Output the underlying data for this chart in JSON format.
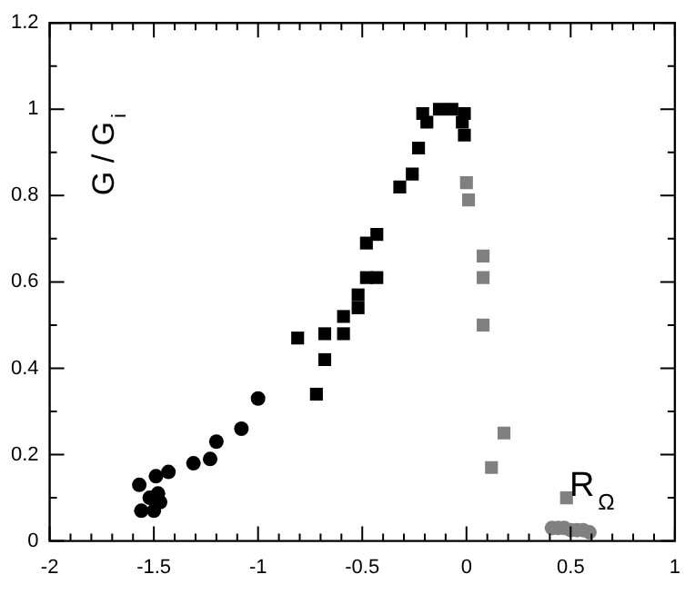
{
  "chart_data": {
    "type": "scatter",
    "xlabel": "R$_{Ω}$",
    "ylabel": "G / G$_{i}$",
    "xlim": [
      -2,
      1
    ],
    "ylim": [
      0,
      1.2
    ],
    "xticks": [
      -2,
      {
        "value": -1.9,
        "label": null
      },
      {
        "value": -1.8,
        "label": null
      },
      {
        "value": -1.7,
        "label": null
      },
      {
        "value": -1.6,
        "label": null
      },
      -1.5,
      {
        "value": -1.4,
        "label": null
      },
      {
        "value": -1.3,
        "label": null
      },
      {
        "value": -1.2,
        "label": null
      },
      {
        "value": -1.1,
        "label": null
      },
      -1,
      {
        "value": -0.9,
        "label": null
      },
      {
        "value": -0.8,
        "label": null
      },
      {
        "value": -0.7,
        "label": null
      },
      {
        "value": -0.6,
        "label": null
      },
      -0.5,
      {
        "value": -0.4,
        "label": null
      },
      {
        "value": -0.3,
        "label": null
      },
      {
        "value": -0.2,
        "label": null
      },
      {
        "value": -0.1,
        "label": null
      },
      0,
      {
        "value": 0.1,
        "label": null
      },
      {
        "value": 0.2,
        "label": null
      },
      {
        "value": 0.3,
        "label": null
      },
      {
        "value": 0.4,
        "label": null
      },
      0.5,
      {
        "value": 0.6,
        "label": null
      },
      {
        "value": 0.7,
        "label": null
      },
      {
        "value": 0.8,
        "label": null
      },
      {
        "value": 0.9,
        "label": null
      },
      1
    ],
    "yticks": [
      0,
      {
        "value": 0.1,
        "label": null
      },
      0.2,
      {
        "value": 0.3,
        "label": null
      },
      0.4,
      {
        "value": 0.5,
        "label": null
      },
      0.6,
      {
        "value": 0.7,
        "label": null
      },
      0.8,
      {
        "value": 0.9,
        "label": null
      },
      1,
      {
        "value": 1.1,
        "label": null
      },
      1.2
    ],
    "grid": false,
    "legend": false,
    "series": [
      {
        "color": "#000000",
        "marker": "circle",
        "x": [
          -1.57,
          -1.56,
          -1.49,
          -1.52,
          -1.48,
          -1.47,
          -1.43,
          -1.31,
          -1.23,
          -1.2,
          -1.08,
          -1.0,
          -1.5
        ],
        "values": [
          0.13,
          0.07,
          0.15,
          0.1,
          0.11,
          0.09,
          0.16,
          0.18,
          0.19,
          0.23,
          0.26,
          0.33,
          0.07
        ]
      },
      {
        "color": "#000000",
        "marker": "square",
        "x": [
          -0.81,
          -0.68,
          -0.48,
          -0.43,
          -0.48,
          -0.32,
          -0.26,
          -0.23,
          -0.19,
          -0.21,
          -0.13,
          -0.07,
          -0.01,
          -0.02,
          -0.01
        ],
        "values": [
          0.47,
          0.48,
          0.69,
          0.61,
          0.61,
          0.82,
          0.85,
          0.91,
          0.97,
          0.99,
          1.0,
          1.0,
          0.99,
          0.97,
          0.94
        ]
      },
      {
        "color": "#000000",
        "marker": "square",
        "x": [
          -0.72,
          -0.68,
          -0.59,
          -0.59,
          -0.52,
          -0.52,
          -0.43
        ],
        "values": [
          0.34,
          0.42,
          0.52,
          0.48,
          0.57,
          0.54,
          0.71
        ]
      },
      {
        "color": "#808080",
        "marker": "square",
        "x": [
          0.0,
          0.01,
          0.08,
          0.18,
          0.12
        ],
        "values": [
          0.83,
          0.79,
          0.5,
          0.25,
          0.17
        ]
      },
      {
        "color": "#808080",
        "marker": "square",
        "x": [
          0.08,
          0.08,
          0.48
        ],
        "values": [
          0.66,
          0.61,
          0.1
        ]
      },
      {
        "color": "#808080",
        "marker": "circle",
        "x": [
          0.41,
          0.44,
          0.47,
          0.5,
          0.53,
          0.56,
          0.59
        ],
        "values": [
          0.03,
          0.03,
          0.03,
          0.025,
          0.025,
          0.025,
          0.02
        ]
      }
    ]
  }
}
